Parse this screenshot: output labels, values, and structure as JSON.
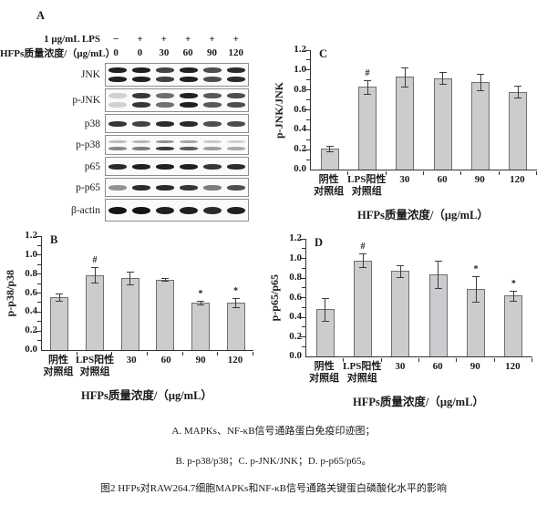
{
  "panel_a": {
    "letter": "A",
    "treatment_rows": [
      {
        "label": "1 μg/mL LPS",
        "values": [
          "−",
          "+",
          "+",
          "+",
          "+",
          "+"
        ]
      },
      {
        "label": "HFPs质量浓度/（μg/mL）",
        "values": [
          "0",
          "0",
          "30",
          "60",
          "90",
          "120"
        ]
      }
    ],
    "blots": [
      {
        "label": "JNK",
        "style": "double",
        "intensities": [
          0.95,
          0.95,
          0.8,
          0.95,
          0.75,
          0.9
        ]
      },
      {
        "label": "p-JNK",
        "style": "double",
        "intensities": [
          0.18,
          0.85,
          0.6,
          0.95,
          0.7,
          0.75
        ]
      },
      {
        "label": "p38",
        "style": "single",
        "intensities": [
          0.85,
          0.8,
          0.9,
          0.9,
          0.75,
          0.75
        ]
      },
      {
        "label": "p-p38",
        "style": "faint-double",
        "intensities": [
          0.5,
          0.55,
          0.85,
          0.7,
          0.4,
          0.35
        ]
      },
      {
        "label": "p65",
        "style": "single",
        "intensities": [
          0.9,
          0.95,
          0.95,
          0.95,
          0.85,
          0.9
        ]
      },
      {
        "label": "p-p65",
        "style": "single",
        "intensities": [
          0.45,
          0.9,
          0.9,
          0.85,
          0.55,
          0.75
        ]
      },
      {
        "label": "β-actin",
        "style": "thick",
        "intensities": [
          1.0,
          1.0,
          0.95,
          0.95,
          0.9,
          0.95
        ]
      }
    ]
  },
  "chart_data": [
    {
      "panel": "C",
      "type": "bar",
      "title": "",
      "ylabel": "p-JNK/JNK",
      "xlabel": "HFPs质量浓度/（μg/mL）",
      "ylim": [
        0,
        1.2
      ],
      "ytick_step": 0.2,
      "grid": false,
      "legend": "none",
      "categories": [
        "阴性对照组",
        "LPS阳性对照组",
        "30",
        "60",
        "90",
        "120"
      ],
      "category_lines": [
        [
          "阴性",
          "对照组"
        ],
        [
          "LPS阳性",
          "对照组"
        ],
        [
          "30"
        ],
        [
          "60"
        ],
        [
          "90"
        ],
        [
          "120"
        ]
      ],
      "values": [
        0.21,
        0.83,
        0.93,
        0.92,
        0.88,
        0.78
      ],
      "errors": [
        0.03,
        0.07,
        0.1,
        0.06,
        0.08,
        0.06
      ],
      "annotations": [
        "",
        "#",
        "",
        "",
        "",
        ""
      ]
    },
    {
      "panel": "B",
      "type": "bar",
      "title": "",
      "ylabel": "p-p38/p38",
      "xlabel": "HFPs质量浓度/（μg/mL）",
      "ylim": [
        0,
        1.2
      ],
      "ytick_step": 0.2,
      "grid": false,
      "legend": "none",
      "categories": [
        "阴性对照组",
        "LPS阳性对照组",
        "30",
        "60",
        "90",
        "120"
      ],
      "category_lines": [
        [
          "阴性",
          "对照组"
        ],
        [
          "LPS阳性",
          "对照组"
        ],
        [
          "30"
        ],
        [
          "60"
        ],
        [
          "90"
        ],
        [
          "120"
        ]
      ],
      "values": [
        0.56,
        0.79,
        0.76,
        0.74,
        0.5,
        0.5
      ],
      "errors": [
        0.04,
        0.08,
        0.07,
        0.015,
        0.02,
        0.05
      ],
      "annotations": [
        "",
        "#",
        "",
        "",
        "*",
        "*"
      ]
    },
    {
      "panel": "D",
      "type": "bar",
      "title": "",
      "ylabel": "p-p65/p65",
      "xlabel": "HFPs质量浓度/（μg/mL）",
      "ylim": [
        0,
        1.2
      ],
      "ytick_step": 0.2,
      "grid": false,
      "legend": "none",
      "categories": [
        "阴性对照组",
        "LPS阳性对照组",
        "30",
        "60",
        "90",
        "120"
      ],
      "category_lines": [
        [
          "阴性",
          "对照组"
        ],
        [
          "LPS阳性",
          "对照组"
        ],
        [
          "30"
        ],
        [
          "60"
        ],
        [
          "90"
        ],
        [
          "120"
        ]
      ],
      "values": [
        0.48,
        0.98,
        0.87,
        0.84,
        0.69,
        0.62
      ],
      "errors": [
        0.12,
        0.07,
        0.06,
        0.14,
        0.13,
        0.05
      ],
      "annotations": [
        "",
        "#",
        "",
        "",
        "*",
        "*"
      ]
    }
  ],
  "captions": [
    "A. MAPKs、NF-κB信号通路蛋白免疫印迹图；",
    "B. p-p38/p38；C. p-JNK/JNK；D. p-p65/p65。",
    "图2 HFPs对RAW264.7细胞MAPKs和NF-κB信号通路关键蛋白磷酸化水平的影响"
  ]
}
